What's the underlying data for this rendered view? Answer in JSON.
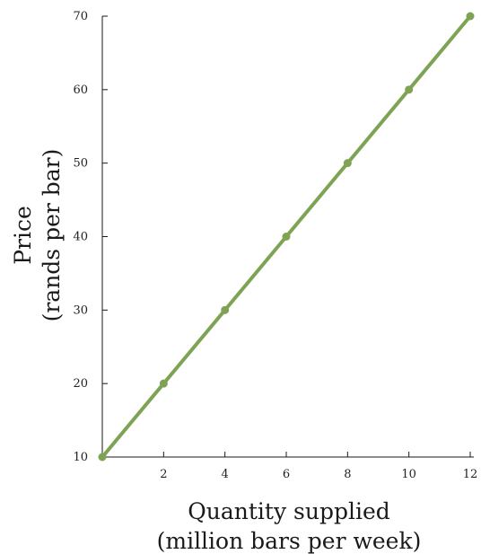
{
  "chart_data": {
    "type": "line",
    "xlabel_line1": "Quantity supplied",
    "xlabel_line2": "(million bars per week)",
    "ylabel_line1": "Price",
    "ylabel_line2": "(rands per bar)",
    "xlim": [
      0,
      12
    ],
    "ylim": [
      10,
      70
    ],
    "x_ticks": [
      2,
      4,
      6,
      8,
      10,
      12
    ],
    "y_ticks": [
      10,
      20,
      30,
      40,
      50,
      60,
      70
    ],
    "grid": false,
    "series": [
      {
        "x": [
          0,
          2,
          4,
          6,
          8,
          10,
          12
        ],
        "y": [
          10,
          20,
          30,
          40,
          50,
          60,
          70
        ],
        "color": "#7fa354"
      }
    ]
  }
}
